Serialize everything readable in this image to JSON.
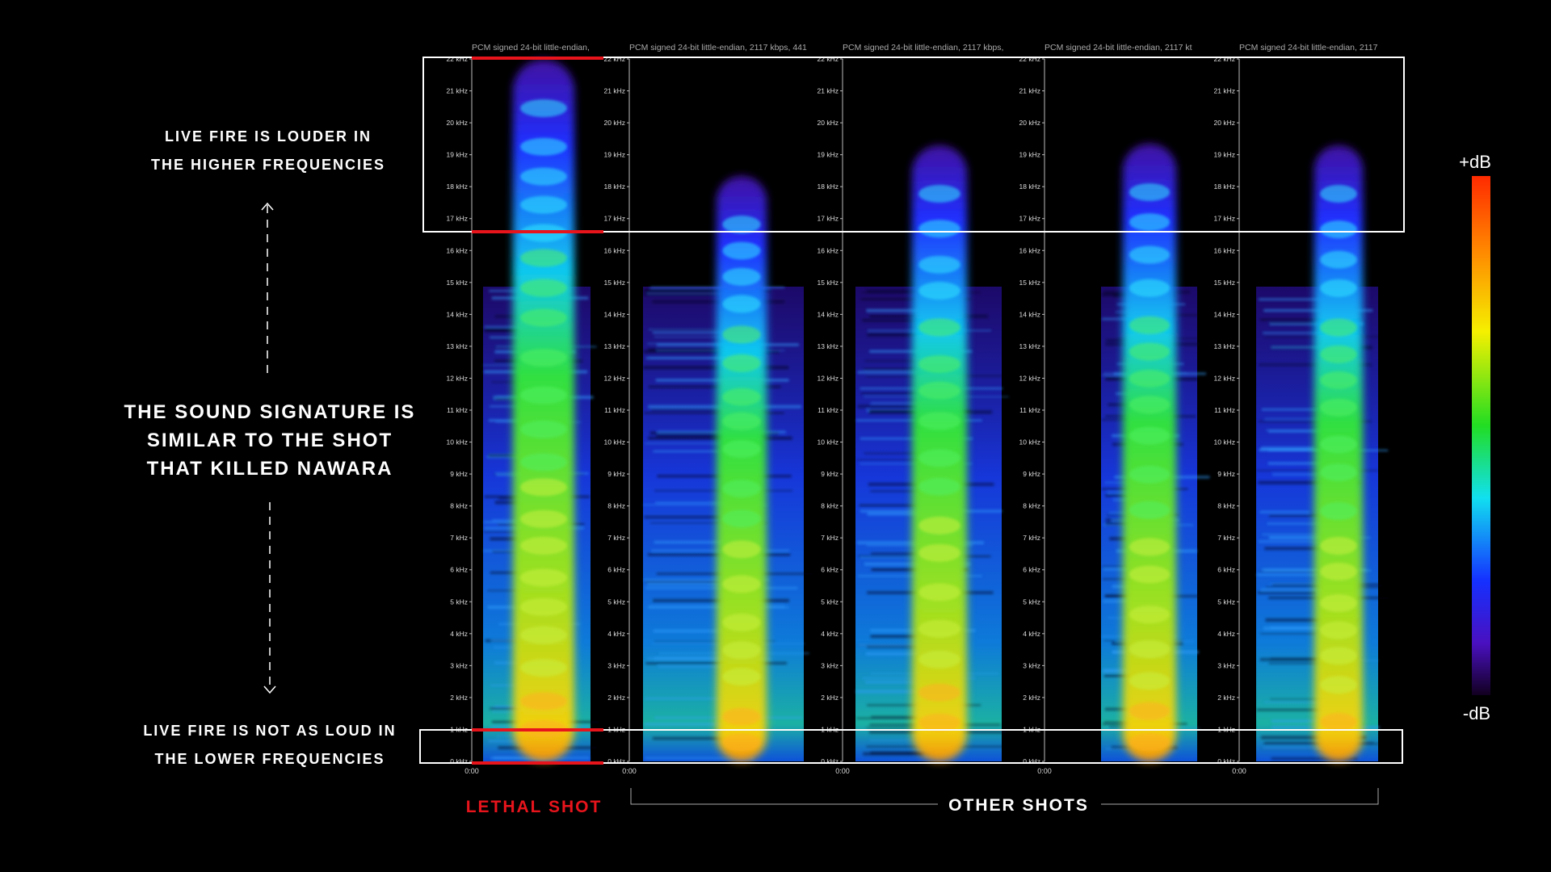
{
  "annotations": {
    "top": [
      "LIVE FIRE IS LOUDER IN",
      "THE HIGHER FREQUENCIES"
    ],
    "middle": [
      "THE SOUND SIGNATURE IS",
      "SIMILAR TO THE SHOT",
      "THAT KILLED NAWARA"
    ],
    "bottom": [
      "LIVE FIRE IS NOT AS LOUD IN",
      "THE LOWER FREQUENCIES"
    ]
  },
  "panels": [
    {
      "header": "PCM signed 24-bit little-endian,"
    },
    {
      "header": "PCM signed 24-bit little-endian, 2117 kbps, 441"
    },
    {
      "header": "PCM signed 24-bit little-endian, 2117 kbps,"
    },
    {
      "header": "PCM signed 24-bit little-endian, 2117 kt"
    },
    {
      "header": "PCM signed 24-bit little-endian, 2117"
    }
  ],
  "frequency_ticks": [
    "22 kHz",
    "21 kHz",
    "20 kHz",
    "19 kHz",
    "18 kHz",
    "17 kHz",
    "16 kHz",
    "15 kHz",
    "14 kHz",
    "13 kHz",
    "12 kHz",
    "11 kHz",
    "10 kHz",
    "9 kHz",
    "8 kHz",
    "7 kHz",
    "6 kHz",
    "5 kHz",
    "4 kHz",
    "3 kHz",
    "2 kHz",
    "1 kHz",
    "0 kHz"
  ],
  "time_start": "0:00",
  "labels": {
    "lethal": "LETHAL SHOT",
    "others": "OTHER SHOTS"
  },
  "scale": {
    "high": "+dB",
    "low": "-dB"
  }
}
